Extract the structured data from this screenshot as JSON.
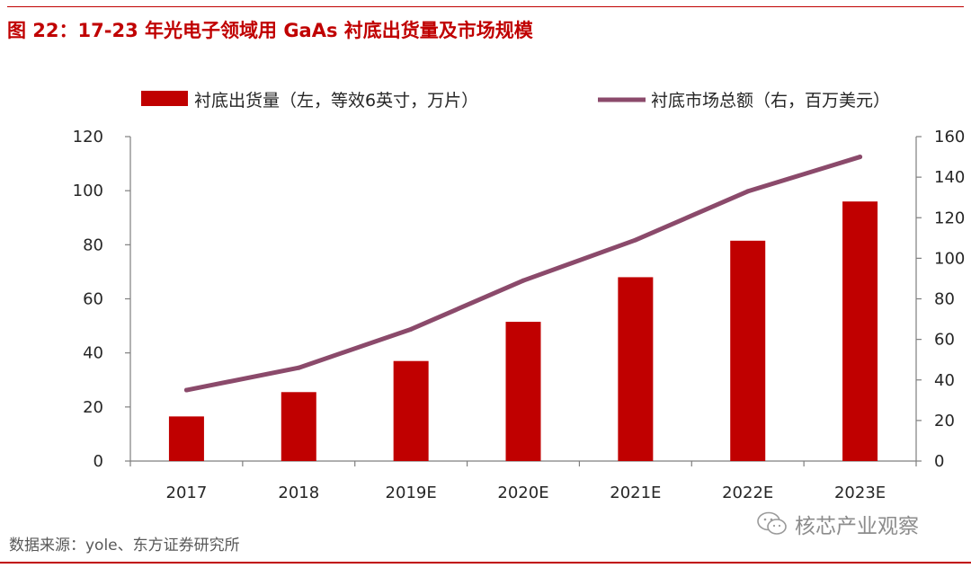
{
  "header": {
    "title": "图 22：17-23 年光电子领域用 GaAs 衬底出货量及市场规模"
  },
  "footer": {
    "source": "数据来源：yole、东方证券研究所",
    "watermark": "核芯产业观察"
  },
  "colors": {
    "accent": "#c00000",
    "bar": "#c00000",
    "line": "#8b4a6b"
  },
  "chart_data": {
    "type": "bar+line",
    "categories": [
      "2017",
      "2018",
      "2019E",
      "2020E",
      "2021E",
      "2022E",
      "2023E"
    ],
    "series": [
      {
        "name": "衬底出货量（左，等效6英寸，万片）",
        "type": "bar",
        "axis": "left",
        "values": [
          16.5,
          25.5,
          37,
          51.5,
          68,
          81.5,
          96
        ]
      },
      {
        "name": "衬底市场总额（右，百万美元）",
        "type": "line",
        "axis": "right",
        "values": [
          35,
          46,
          65,
          89,
          109,
          133,
          150
        ]
      }
    ],
    "y_left": {
      "ylim": [
        0,
        120
      ],
      "ticks": [
        0,
        20,
        40,
        60,
        80,
        100,
        120
      ]
    },
    "y_right": {
      "ylim": [
        0,
        160
      ],
      "ticks": [
        0,
        20,
        40,
        60,
        80,
        100,
        120,
        140,
        160
      ]
    },
    "legend_position": "top",
    "grid": false
  }
}
